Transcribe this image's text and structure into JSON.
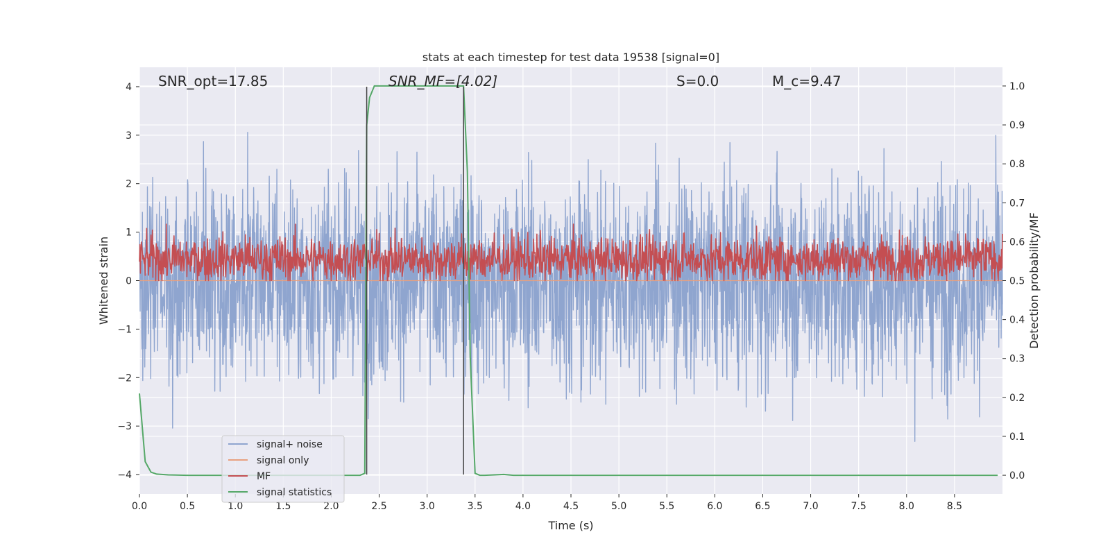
{
  "chart_data": {
    "type": "line",
    "title": "stats at each timestep for test data 19538 [signal=0]",
    "xlabel": "Time (s)",
    "ylabel": "Whitened strain",
    "y2label": "Detection probability/MF",
    "xlim": [
      0.0,
      9.0
    ],
    "ylim": [
      -4.4,
      4.4
    ],
    "y2lim": [
      -0.048,
      1.048
    ],
    "x_ticks": [
      0.0,
      0.5,
      1.0,
      1.5,
      2.0,
      2.5,
      3.0,
      3.5,
      4.0,
      4.5,
      5.0,
      5.5,
      6.0,
      6.5,
      7.0,
      7.5,
      8.0,
      8.5
    ],
    "x_tick_labels": [
      "0.0",
      "0.5",
      "1.0",
      "1.5",
      "2.0",
      "2.5",
      "3.0",
      "3.5",
      "4.0",
      "4.5",
      "5.0",
      "5.5",
      "6.0",
      "6.5",
      "7.0",
      "7.5",
      "8.0",
      "8.5"
    ],
    "y_ticks": [
      -4,
      -3,
      -2,
      -1,
      0,
      1,
      2,
      3,
      4
    ],
    "y_tick_labels": [
      "−4",
      "−3",
      "−2",
      "−1",
      "0",
      "1",
      "2",
      "3",
      "4"
    ],
    "y2_ticks": [
      0.0,
      0.1,
      0.2,
      0.3,
      0.4,
      0.5,
      0.6,
      0.7,
      0.8,
      0.9,
      1.0
    ],
    "y2_tick_labels": [
      "0.0",
      "0.1",
      "0.2",
      "0.3",
      "0.4",
      "0.5",
      "0.6",
      "0.7",
      "0.8",
      "0.9",
      "1.0"
    ],
    "grid": true,
    "legend_position": "lower-left",
    "annotations": [
      {
        "text": "SNR_opt=17.85",
        "x": 0.2,
        "y": 4.1
      },
      {
        "text": "SNR_MF=[4.02]",
        "x": 2.6,
        "y": 4.1
      },
      {
        "text": "S=0.0",
        "x": 5.6,
        "y": 4.1
      },
      {
        "text": "M_c=9.47",
        "x": 6.6,
        "y": 4.1
      }
    ],
    "vertical_lines": [
      2.37,
      3.38
    ],
    "series": [
      {
        "name": "signal+ noise",
        "color": "#8fa5cf",
        "description": "whitened noise trace spanning about -3.5 to 4.0 over 0-9 s"
      },
      {
        "name": "signal only",
        "color": "#e8a07f",
        "x": [
          0.0,
          9.0
        ],
        "y": [
          0.0,
          0.0
        ]
      },
      {
        "name": "MF",
        "color": "#c44e52",
        "axis": "right",
        "description": "matched filter output fluctuating between 0.5 and 0.64"
      },
      {
        "name": "signal statistics",
        "color": "#55a868",
        "axis": "right",
        "x": [
          0.0,
          0.06,
          0.12,
          0.18,
          0.3,
          0.5,
          1.0,
          1.5,
          2.0,
          2.3,
          2.35,
          2.37,
          2.4,
          2.45,
          2.5,
          3.0,
          3.38,
          3.42,
          3.45,
          3.5,
          3.55,
          3.6,
          3.8,
          3.9,
          4.0,
          5.0,
          6.0,
          7.0,
          8.0,
          8.95
        ],
        "y": [
          0.21,
          0.035,
          0.008,
          0.003,
          0.001,
          0.0,
          0.0,
          0.0,
          0.0,
          0.0,
          0.005,
          0.9,
          0.97,
          1.0,
          1.0,
          1.0,
          1.0,
          0.78,
          0.3,
          0.005,
          0.0,
          0.0,
          0.002,
          0.0,
          0.0,
          0.0,
          0.0,
          0.0,
          0.0,
          0.0
        ]
      }
    ]
  }
}
